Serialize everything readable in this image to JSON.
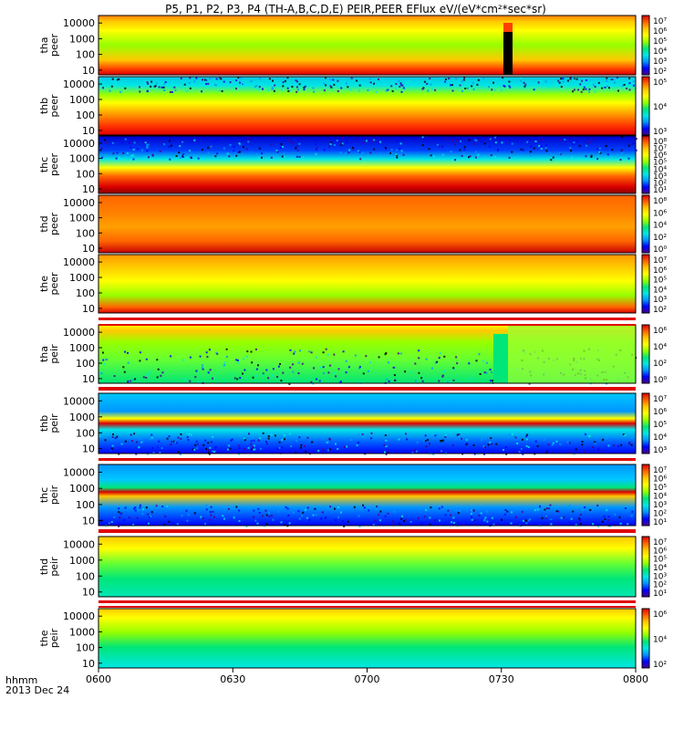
{
  "title": "P5, P1, P2, P3, P4 (TH-A,B,C,D,E) PEIR,PEER EFlux eV/(eV*cm²*sec*sr)",
  "x_axis": {
    "label_line1": "hhmm",
    "label_line2": "2013 Dec 24",
    "ticks": [
      "0600",
      "0630",
      "0700",
      "0730",
      "0800"
    ]
  },
  "colors": {
    "rainbow": [
      "#4a0090",
      "#0000ff",
      "#0096ff",
      "#00e6e6",
      "#00e678",
      "#96ff00",
      "#ffff00",
      "#ffc800",
      "#ff6400",
      "#dc0000"
    ],
    "band_red": "#e00000",
    "gap": "#ffffff"
  },
  "chart_data": [
    {
      "type": "heatmap",
      "probe": "tha",
      "species": "peer",
      "ylabel": [
        "tha",
        "peer"
      ],
      "yticks": [
        "10",
        "100",
        "1000",
        "10000"
      ],
      "cbar_ticks": [
        "10²",
        "10³",
        "10⁴",
        "10⁵",
        "10⁶",
        "10⁷"
      ]
    },
    {
      "type": "heatmap",
      "probe": "thb",
      "species": "peer",
      "ylabel": [
        "thb",
        "peer"
      ],
      "yticks": [
        "10",
        "100",
        "1000",
        "10000"
      ],
      "cbar_ticks": [
        "10³",
        "10⁴",
        "10⁵"
      ]
    },
    {
      "type": "heatmap",
      "probe": "thc",
      "species": "peer",
      "ylabel": [
        "thc",
        "peer"
      ],
      "yticks": [
        "10",
        "100",
        "1000",
        "10000"
      ],
      "cbar_ticks": [
        "10¹",
        "10²",
        "10³",
        "10⁴",
        "10⁵",
        "10⁶",
        "10⁷",
        "10⁸"
      ]
    },
    {
      "type": "heatmap",
      "probe": "thd",
      "species": "peer",
      "ylabel": [
        "thd",
        "peer"
      ],
      "yticks": [
        "10",
        "100",
        "1000",
        "10000"
      ],
      "cbar_ticks": [
        "10⁰",
        "10²",
        "10⁴",
        "10⁶",
        "10⁸"
      ]
    },
    {
      "type": "heatmap",
      "probe": "the",
      "species": "peer",
      "ylabel": [
        "the",
        "peer"
      ],
      "yticks": [
        "10",
        "100",
        "1000",
        "10000"
      ],
      "cbar_ticks": [
        "10²",
        "10³",
        "10⁴",
        "10⁵",
        "10⁶",
        "10⁷"
      ]
    },
    {
      "type": "heatmap",
      "probe": "tha",
      "species": "peir",
      "ylabel": [
        "tha",
        "peir"
      ],
      "yticks": [
        "10",
        "100",
        "1000",
        "10000"
      ],
      "cbar_ticks": [
        "10⁰",
        "10²",
        "10⁴",
        "10⁶"
      ]
    },
    {
      "type": "heatmap",
      "probe": "thb",
      "species": "peir",
      "ylabel": [
        "thb",
        "peir"
      ],
      "yticks": [
        "10",
        "100",
        "1000",
        "10000"
      ],
      "cbar_ticks": [
        "10³",
        "10⁴",
        "10⁵",
        "10⁶",
        "10⁷"
      ]
    },
    {
      "type": "heatmap",
      "probe": "thc",
      "species": "peir",
      "ylabel": [
        "thc",
        "peir"
      ],
      "yticks": [
        "10",
        "100",
        "1000",
        "10000"
      ],
      "cbar_ticks": [
        "10¹",
        "10²",
        "10³",
        "10⁴",
        "10⁵",
        "10⁶",
        "10⁷"
      ]
    },
    {
      "type": "heatmap",
      "probe": "thd",
      "species": "peir",
      "ylabel": [
        "thd",
        "peir"
      ],
      "yticks": [
        "10",
        "100",
        "1000",
        "10000"
      ],
      "cbar_ticks": [
        "10¹",
        "10²",
        "10³",
        "10⁴",
        "10⁵",
        "10⁶",
        "10⁷"
      ]
    },
    {
      "type": "heatmap",
      "probe": "the",
      "species": "peir",
      "ylabel": [
        "the",
        "peir"
      ],
      "yticks": [
        "10",
        "100",
        "1000",
        "10000"
      ],
      "cbar_ticks": [
        "10²",
        "10⁴",
        "10⁶"
      ]
    }
  ]
}
